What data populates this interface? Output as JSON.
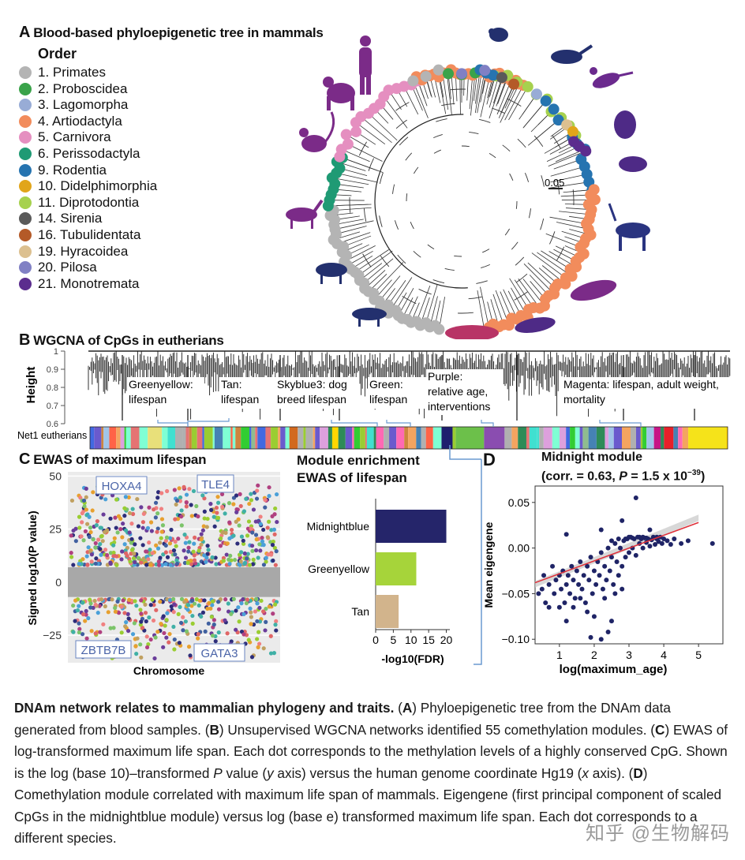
{
  "panelA": {
    "letter": "A",
    "title": "Blood-based phyloepigenetic tree in mammals",
    "legend_title": "Order",
    "legend": [
      {
        "label": "1. Primates",
        "color": "#b4b4b4"
      },
      {
        "label": "2. Proboscidea",
        "color": "#3aa34a"
      },
      {
        "label": "3. Lagomorpha",
        "color": "#98acd6"
      },
      {
        "label": "4. Artiodactyla",
        "color": "#f28c5c"
      },
      {
        "label": "5. Carnivora",
        "color": "#e58fc0"
      },
      {
        "label": "6. Perissodactyla",
        "color": "#1f9a74"
      },
      {
        "label": "9. Rodentia",
        "color": "#2674b0"
      },
      {
        "label": "10. Didelphimorphia",
        "color": "#e1a51a"
      },
      {
        "label": "11. Diprotodontia",
        "color": "#a6d14e"
      },
      {
        "label": "14. Sirenia",
        "color": "#5a5a5a"
      },
      {
        "label": "16. Tubulidentata",
        "color": "#b45a28"
      },
      {
        "label": "19. Hyracoidea",
        "color": "#dcc090"
      },
      {
        "label": "20. Pilosa",
        "color": "#8080c4"
      },
      {
        "label": "21. Monotremata",
        "color": "#5b2d8e"
      }
    ],
    "scale_label": "0.05"
  },
  "panelB": {
    "letter": "B",
    "title": "WGCNA of CpGs in eutherians",
    "ylabel": "Height",
    "yticks": [
      "1",
      "0.9",
      "0.8",
      "0.7",
      "0.6"
    ],
    "bar_label": "Net1 eutherians",
    "modules": [
      {
        "line1": "Greenyellow:",
        "line2": "lifespan"
      },
      {
        "line1": "Tan:",
        "line2": "lifespan"
      },
      {
        "line1": "Skyblue3: dog",
        "line2": "breed lifespan"
      },
      {
        "line1": "Green:",
        "line2": "lifespan"
      },
      {
        "line1": "Purple:",
        "line2": "relative age,",
        "line3": "interventions"
      },
      {
        "line1": "Magenta: lifespan, adult weight,",
        "line2": "mortality"
      }
    ]
  },
  "panelC": {
    "letter": "C",
    "title": "EWAS of maximum lifespan",
    "ylabel": "Signed log10(P value)",
    "xlabel": "Chromosome",
    "yticks": [
      "50",
      "25",
      "0",
      "−25"
    ],
    "genes": [
      "HOXA4",
      "TLE4",
      "ZBTB7B",
      "GATA3"
    ]
  },
  "enrichment": {
    "title1": "Module enrichment",
    "title2": "EWAS of lifespan",
    "xlabel": "-log10(FDR)",
    "xticks": [
      "0",
      "5",
      "10",
      "15",
      "20"
    ],
    "chart_data": {
      "type": "bar",
      "orientation": "horizontal",
      "categories": [
        "Midnightblue",
        "Greenyellow",
        "Tan"
      ],
      "values": [
        20,
        11.5,
        6.5
      ],
      "colors": [
        "#25256a",
        "#a6d43a",
        "#d2b48c"
      ],
      "xlim": [
        0,
        21
      ],
      "xlabel": "-log10(FDR)"
    }
  },
  "panelD": {
    "letter": "D",
    "title": "Midnight module",
    "subtitle_pre": "(corr. = 0.63, ",
    "subtitle_p": "P",
    "subtitle_mid": " = 1.5 x 10",
    "subtitle_exp": "−39",
    "subtitle_post": ")",
    "ylabel": "Mean eigengene",
    "xlabel": "log(maximum_age)",
    "xticks": [
      "1",
      "2",
      "3",
      "4",
      "5"
    ],
    "yticks": [
      "0.05",
      "0.00",
      "−0.05",
      "−0.10"
    ],
    "chart_data": {
      "type": "scatter",
      "xlim": [
        0.3,
        5.7
      ],
      "ylim": [
        -0.105,
        0.068
      ],
      "xlabel": "log(maximum_age)",
      "ylabel": "Mean eigengene",
      "fit": {
        "x": [
          0.3,
          5.0
        ],
        "y": [
          -0.038,
          0.028
        ]
      },
      "points": [
        [
          0.4,
          -0.05
        ],
        [
          0.5,
          -0.045
        ],
        [
          0.55,
          -0.03
        ],
        [
          0.6,
          -0.06
        ],
        [
          0.7,
          -0.04
        ],
        [
          0.8,
          -0.02
        ],
        [
          0.85,
          -0.05
        ],
        [
          0.9,
          -0.035
        ],
        [
          1.0,
          -0.03
        ],
        [
          1.05,
          -0.045
        ],
        [
          1.1,
          -0.025
        ],
        [
          1.15,
          -0.06
        ],
        [
          1.2,
          -0.04
        ],
        [
          1.25,
          -0.03
        ],
        [
          1.3,
          -0.05
        ],
        [
          1.35,
          -0.02
        ],
        [
          1.4,
          -0.035
        ],
        [
          1.45,
          -0.055
        ],
        [
          1.5,
          -0.025
        ],
        [
          1.55,
          -0.04
        ],
        [
          1.6,
          -0.015
        ],
        [
          1.65,
          -0.045
        ],
        [
          1.7,
          -0.03
        ],
        [
          1.75,
          -0.06
        ],
        [
          1.8,
          -0.02
        ],
        [
          1.85,
          -0.035
        ],
        [
          1.9,
          -0.01
        ],
        [
          1.95,
          -0.05
        ],
        [
          2.0,
          -0.025
        ],
        [
          2.05,
          -0.04
        ],
        [
          2.1,
          -0.015
        ],
        [
          2.15,
          -0.03
        ],
        [
          2.2,
          -0.005
        ],
        [
          2.25,
          -0.045
        ],
        [
          2.3,
          -0.02
        ],
        [
          2.35,
          -0.035
        ],
        [
          2.4,
          0.0
        ],
        [
          2.45,
          -0.025
        ],
        [
          2.5,
          -0.01
        ],
        [
          2.55,
          -0.04
        ],
        [
          2.6,
          0.005
        ],
        [
          2.65,
          -0.015
        ],
        [
          2.7,
          -0.03
        ],
        [
          2.75,
          0.0
        ],
        [
          2.8,
          -0.02
        ],
        [
          2.85,
          0.008
        ],
        [
          2.9,
          -0.01
        ],
        [
          2.95,
          0.01
        ],
        [
          3.0,
          -0.005
        ],
        [
          3.05,
          0.012
        ],
        [
          3.1,
          0.0
        ],
        [
          3.15,
          0.01
        ],
        [
          3.2,
          -0.008
        ],
        [
          3.25,
          0.012
        ],
        [
          3.3,
          0.005
        ],
        [
          3.35,
          0.01
        ],
        [
          3.4,
          0.0
        ],
        [
          3.45,
          0.011
        ],
        [
          3.5,
          0.006
        ],
        [
          3.55,
          0.01
        ],
        [
          3.6,
          0.002
        ],
        [
          3.65,
          0.009
        ],
        [
          3.7,
          0.011
        ],
        [
          3.75,
          0.004
        ],
        [
          3.8,
          0.01
        ],
        [
          3.85,
          0.007
        ],
        [
          3.9,
          0.012
        ],
        [
          3.95,
          0.005
        ],
        [
          4.0,
          0.01
        ],
        [
          4.1,
          0.008
        ],
        [
          4.2,
          0.004
        ],
        [
          4.3,
          0.01
        ],
        [
          4.5,
          0.005
        ],
        [
          4.7,
          0.008
        ],
        [
          5.4,
          0.005
        ],
        [
          3.2,
          0.055
        ],
        [
          3.6,
          0.02
        ],
        [
          2.2,
          0.02
        ],
        [
          1.2,
          0.015
        ],
        [
          2.8,
          0.03
        ],
        [
          1.8,
          -0.07
        ],
        [
          2.0,
          -0.075
        ],
        [
          2.5,
          -0.08
        ],
        [
          1.2,
          -0.08
        ],
        [
          2.2,
          -0.1
        ],
        [
          1.9,
          -0.098
        ],
        [
          2.4,
          -0.092
        ],
        [
          1.0,
          -0.065
        ],
        [
          2.9,
          0.01
        ],
        [
          3.0,
          0.012
        ],
        [
          3.1,
          0.011
        ],
        [
          3.3,
          0.012
        ],
        [
          3.5,
          0.011
        ],
        [
          3.7,
          0.012
        ],
        [
          2.6,
          -0.05
        ],
        [
          2.8,
          -0.045
        ],
        [
          2.3,
          -0.055
        ],
        [
          1.6,
          -0.055
        ],
        [
          1.4,
          -0.065
        ],
        [
          0.7,
          -0.065
        ],
        [
          3.4,
          0.012
        ],
        [
          3.8,
          0.012
        ],
        [
          2.7,
          0.01
        ],
        [
          2.5,
          0.008
        ]
      ]
    }
  },
  "caption": {
    "bold": "DNAm network relates to mammalian phylogeny and traits.",
    "p1": " (",
    "A": "A",
    "p2": ") Phyloepigenetic tree from the DNAm data generated from blood samples. (",
    "B": "B",
    "p3": ") Unsupervised WGCNA networks identified 55 comethylation modules. (",
    "C": "C",
    "p4": ") EWAS of log-transformed maximum life span. Each dot corresponds to the methylation levels of a highly conserved CpG. Shown is the log (base 10)–transformed ",
    "Pital": "P",
    "p5": " value (",
    "yital": "y",
    "p6": " axis) versus the human genome coordinate Hg19 (",
    "xital": "x",
    "p7": " axis). (",
    "D": "D",
    "p8": ") Comethylation module correlated with maximum life span of mammals. Eigengene (first principal component of scaled CpGs in the midnightblue module) versus log (base e) transformed maximum life span. Each dot corresponds to a different species."
  },
  "watermark": "知乎 @生物解码"
}
